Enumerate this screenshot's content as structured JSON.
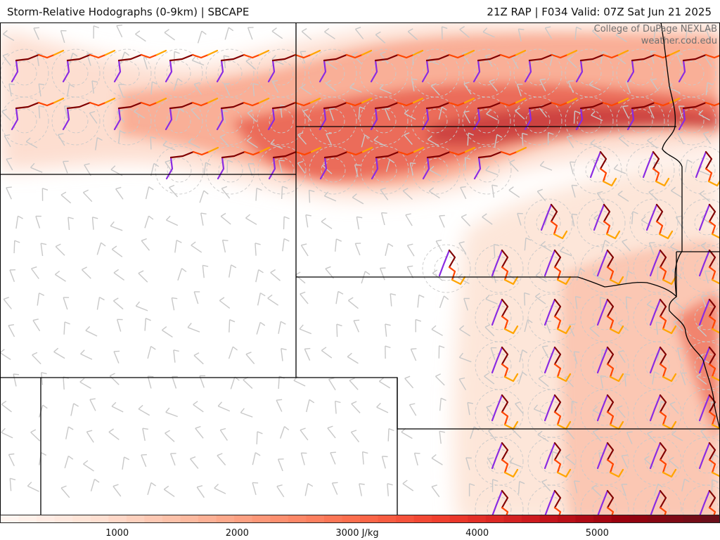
{
  "header": {
    "title": "Storm-Relative Hodographs (0-9km) | SBCAPE",
    "run_info": "21Z RAP | F034 Valid: 07Z Sat Jun 21 2025"
  },
  "watermark": {
    "line1": "College of DuPage NEXLAB",
    "line2": "weather.cod.edu"
  },
  "colorbar": {
    "min": 0,
    "max": 6000,
    "colors": [
      "#fff5f0",
      "#fee0d2",
      "#fcbba1",
      "#fc9272",
      "#fb6a4a",
      "#ef3b2c",
      "#cb181d",
      "#99000d",
      "#6b0f1a"
    ],
    "tick_labels": [
      {
        "value": 1000,
        "text": "1000"
      },
      {
        "value": 2000,
        "text": "2000"
      },
      {
        "value": 3000,
        "text": "3000 J/kg"
      },
      {
        "value": 4000,
        "text": "4000"
      },
      {
        "value": 5000,
        "text": "5000"
      }
    ]
  },
  "colors": {
    "border": "#000000",
    "hodo_0_3km": "#800000",
    "hodo_3_6km": "#ff4500",
    "hodo_6_9km": "#ffa500",
    "hodo_low": "#8a2be2",
    "barbs": "#c8c8c8"
  }
}
